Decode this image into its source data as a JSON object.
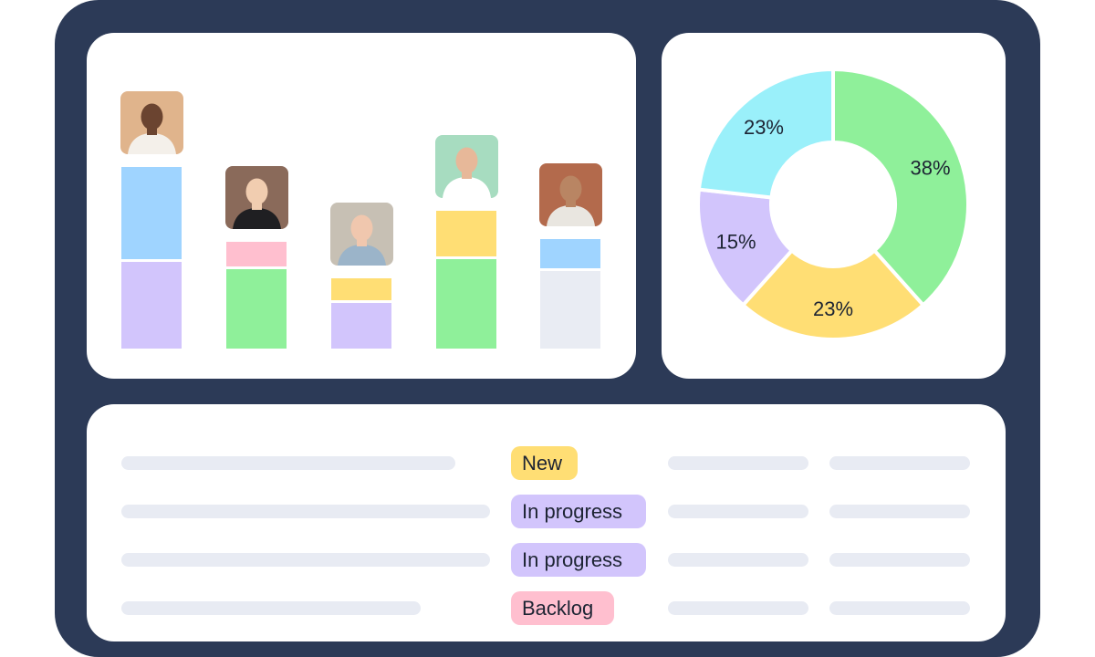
{
  "chart_data": [
    {
      "type": "bar",
      "stacked": true,
      "categories": [
        "",
        "",
        "",
        "",
        ""
      ],
      "series": [
        {
          "color": "#d2c5fc",
          "values": [
            36,
            0,
            19,
            0,
            0
          ]
        },
        {
          "color": "#8ff09a",
          "values": [
            0,
            33,
            0,
            37,
            0
          ]
        },
        {
          "color": "#ffde74",
          "values": [
            0,
            0,
            0,
            19,
            0
          ]
        },
        {
          "color": "#e9ecf3",
          "values": [
            0,
            0,
            0,
            0,
            32
          ]
        },
        {
          "color": "#ffbfcf",
          "values": [
            0,
            10,
            0,
            0,
            0
          ]
        },
        {
          "color": "#ffde74",
          "values": [
            0,
            0,
            9,
            0,
            0
          ]
        },
        {
          "color": "#9fd4ff",
          "values": [
            38,
            0,
            0,
            0,
            12
          ]
        }
      ],
      "grid": false,
      "legend": "none"
    },
    {
      "type": "pie",
      "donut": true,
      "slices": [
        {
          "label": "38%",
          "value": 38,
          "color": "#8ff09a"
        },
        {
          "label": "23%",
          "value": 23,
          "color": "#ffde74"
        },
        {
          "label": "15%",
          "value": 15,
          "color": "#d2c5fc"
        },
        {
          "label": "23%",
          "value": 23,
          "color": "#9af0fa"
        }
      ]
    }
  ],
  "avatars": [
    {
      "icon": "person-avatar-icon",
      "bg": "#e0b48c",
      "skin": "#6b4430",
      "shirt": "#f4f0ea"
    },
    {
      "icon": "person-avatar-icon",
      "bg": "#8a6a5a",
      "skin": "#f1cdb0",
      "shirt": "#1f1f22"
    },
    {
      "icon": "person-avatar-icon",
      "bg": "#c7c0b4",
      "skin": "#f0c7ae",
      "shirt": "#9bb4c9"
    },
    {
      "icon": "person-avatar-icon",
      "bg": "#a7dcc0",
      "skin": "#e7b899",
      "shirt": "#ffffff"
    },
    {
      "icon": "person-avatar-icon",
      "bg": "#b36a4c",
      "skin": "#b98563",
      "shirt": "#e9e6e0"
    }
  ],
  "table": {
    "rows": [
      {
        "status": "New",
        "status_color": "#ffde74"
      },
      {
        "status": "In progress",
        "status_color": "#d2c5fc"
      },
      {
        "status": "In progress",
        "status_color": "#d2c5fc"
      },
      {
        "status": "Backlog",
        "status_color": "#ffbfcf"
      }
    ]
  },
  "colors": {
    "frame": "#2c3a57",
    "card": "#ffffff",
    "placeholder": "#e8ebf3"
  }
}
